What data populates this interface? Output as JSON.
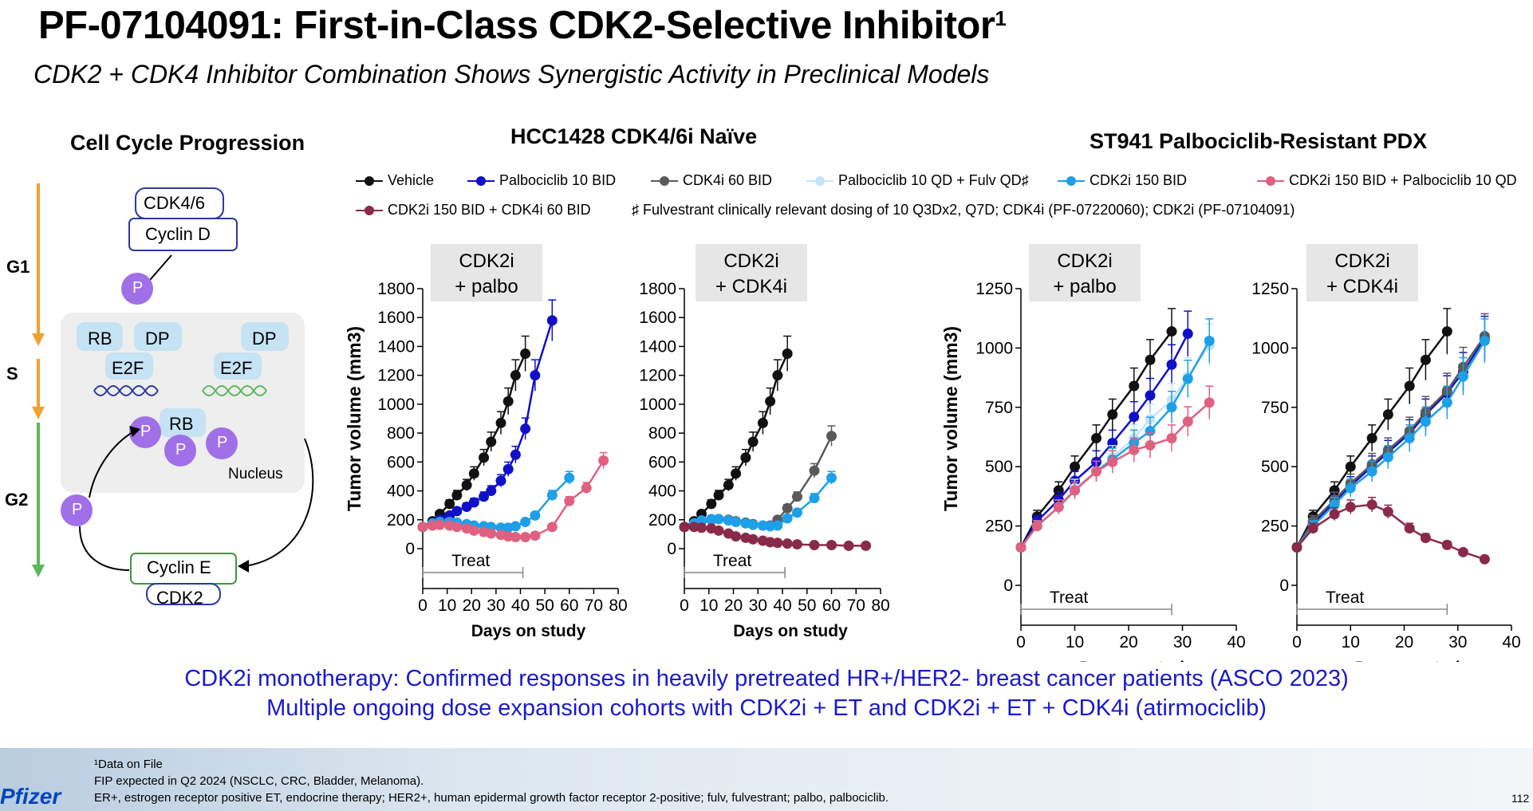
{
  "title": "PF-07104091: First-in-Class CDK2-Selective Inhibitor",
  "title_sup": "1",
  "subtitle": "CDK2 + CDK4 Inhibitor Combination Shows Synergistic Activity in Preclinical Models",
  "cell_cycle": {
    "heading": "Cell Cycle Progression",
    "phases": [
      "G1",
      "S",
      "G2"
    ],
    "cdk46": "CDK4/6",
    "cyclin_d": "Cyclin D",
    "cyclin_e": "Cyclin E",
    "cdk2": "CDK2",
    "rb": "RB",
    "dp": "DP",
    "e2f": "E2F",
    "p": "P",
    "nucleus": "Nucleus",
    "colors": {
      "phase_g1": "#f0a030",
      "phase_g2": "#5cb85c",
      "phospho": "#a070e8",
      "box_fill": "#eeeeee",
      "rb_fill": "#c6e2f5"
    }
  },
  "heading_hcc": "HCC1428 CDK4/6i Naïve",
  "heading_st941": "ST941 Palbociclib-Resistant PDX",
  "legend": {
    "items": [
      {
        "label": "Vehicle",
        "color": "#111111"
      },
      {
        "label": "Palbociclib 10 BID",
        "color": "#1010c8"
      },
      {
        "label": "CDK4i 60 BID",
        "color": "#5a5a5a"
      },
      {
        "label": "Palbociclib 10 QD + Fulv QD♯",
        "color": "#c5e4f8"
      },
      {
        "label": "CDK2i 150 BID",
        "color": "#1ea0e8"
      },
      {
        "label": "CDK2i 150 BID + Palbociclib 10 QD",
        "color": "#e06080"
      },
      {
        "label": "CDK2i 150 BID + CDK4i 60 BID",
        "color": "#8a2a4a"
      }
    ],
    "footnote": "♯ Fulvestrant clinically relevant dosing of 10 Q3Dx2, Q7D; CDK4i (PF-07220060); CDK2i (PF-07104091)"
  },
  "chart_data": [
    {
      "type": "line",
      "panel": "HCC1428 CDK4/6i Naïve",
      "box_label": [
        "CDK2i",
        "+ palbo"
      ],
      "xlabel": "Days on study",
      "ylabel": "Tumor volume (mm3)",
      "xlim": [
        0,
        80
      ],
      "ylim": [
        0,
        1800
      ],
      "xticks": [
        0,
        10,
        20,
        30,
        40,
        50,
        60,
        70,
        80
      ],
      "yticks": [
        0,
        200,
        400,
        600,
        800,
        1000,
        1200,
        1400,
        1600,
        1800
      ],
      "treat_label": "Treat",
      "treat_range": [
        0,
        41
      ],
      "series": [
        {
          "name": "Vehicle",
          "color": "#111111",
          "x": [
            0,
            4,
            7,
            11,
            14,
            18,
            21,
            25,
            28,
            32,
            35,
            38,
            42
          ],
          "y": [
            150,
            190,
            240,
            310,
            370,
            440,
            520,
            630,
            740,
            870,
            1020,
            1200,
            1350
          ]
        },
        {
          "name": "Palbociclib 10 BID",
          "color": "#1010c8",
          "x": [
            0,
            4,
            7,
            11,
            14,
            18,
            21,
            25,
            28,
            32,
            35,
            38,
            42,
            46,
            53
          ],
          "y": [
            150,
            170,
            200,
            230,
            260,
            290,
            320,
            360,
            400,
            470,
            550,
            650,
            830,
            1200,
            1580
          ]
        },
        {
          "name": "CDK2i 150 BID",
          "color": "#1ea0e8",
          "x": [
            0,
            4,
            7,
            11,
            14,
            18,
            21,
            25,
            28,
            32,
            35,
            38,
            42,
            46,
            53,
            60
          ],
          "y": [
            150,
            175,
            185,
            185,
            180,
            170,
            160,
            155,
            150,
            145,
            145,
            155,
            185,
            230,
            370,
            490
          ]
        },
        {
          "name": "CDK2i 150 BID + Palbociclib 10 QD",
          "color": "#e06080",
          "x": [
            0,
            4,
            7,
            11,
            14,
            18,
            21,
            25,
            28,
            32,
            35,
            38,
            42,
            46,
            53,
            60,
            67,
            74
          ],
          "y": [
            150,
            160,
            165,
            160,
            150,
            140,
            125,
            115,
            105,
            95,
            85,
            80,
            80,
            90,
            150,
            330,
            420,
            610
          ]
        }
      ]
    },
    {
      "type": "line",
      "panel": "HCC1428 CDK4/6i Naïve",
      "box_label": [
        "CDK2i",
        "+ CDK4i"
      ],
      "xlabel": "Days on study",
      "xlim": [
        0,
        80
      ],
      "ylim": [
        0,
        1800
      ],
      "xticks": [
        0,
        10,
        20,
        30,
        40,
        50,
        60,
        70,
        80
      ],
      "yticks": [
        0,
        200,
        400,
        600,
        800,
        1000,
        1200,
        1400,
        1600,
        1800
      ],
      "treat_label": "Treat",
      "treat_range": [
        0,
        41
      ],
      "series": [
        {
          "name": "Vehicle",
          "color": "#111111",
          "x": [
            0,
            4,
            7,
            11,
            14,
            18,
            21,
            25,
            28,
            32,
            35,
            38,
            42
          ],
          "y": [
            150,
            190,
            240,
            310,
            370,
            440,
            520,
            630,
            740,
            870,
            1020,
            1200,
            1350
          ]
        },
        {
          "name": "CDK4i 60 BID",
          "color": "#5a5a5a",
          "x": [
            0,
            4,
            7,
            11,
            14,
            18,
            21,
            25,
            28,
            32,
            35,
            38,
            42,
            46,
            53,
            60
          ],
          "y": [
            150,
            170,
            190,
            200,
            205,
            200,
            190,
            180,
            170,
            160,
            160,
            200,
            280,
            360,
            540,
            780
          ]
        },
        {
          "name": "CDK2i 150 BID",
          "color": "#1ea0e8",
          "x": [
            0,
            4,
            7,
            11,
            14,
            18,
            21,
            25,
            28,
            32,
            35,
            38,
            42,
            46,
            53,
            60
          ],
          "y": [
            150,
            175,
            195,
            205,
            205,
            195,
            185,
            175,
            165,
            160,
            155,
            160,
            210,
            250,
            350,
            490
          ]
        },
        {
          "name": "CDK2i 150 BID + CDK4i 60 BID",
          "color": "#8a2a4a",
          "x": [
            0,
            4,
            7,
            11,
            14,
            18,
            21,
            25,
            28,
            32,
            35,
            38,
            42,
            46,
            53,
            60,
            67,
            74
          ],
          "y": [
            150,
            150,
            145,
            140,
            125,
            105,
            85,
            75,
            65,
            55,
            45,
            40,
            35,
            30,
            25,
            25,
            20,
            20
          ]
        }
      ]
    },
    {
      "type": "line",
      "panel": "ST941 Palbociclib-Resistant PDX",
      "box_label": [
        "CDK2i",
        "+ palbo"
      ],
      "xlabel": "Days on study",
      "ylabel": "Tumor volume (mm3)",
      "xlim": [
        0,
        40
      ],
      "ylim": [
        0,
        1250
      ],
      "xticks": [
        0,
        10,
        20,
        30,
        40
      ],
      "yticks": [
        0,
        250,
        500,
        750,
        1000,
        1250
      ],
      "treat_label": "Treat",
      "treat_range": [
        0,
        28
      ],
      "series": [
        {
          "name": "Vehicle",
          "color": "#111111",
          "x": [
            0,
            3,
            7,
            10,
            14,
            17,
            21,
            24,
            28
          ],
          "y": [
            160,
            290,
            400,
            500,
            620,
            720,
            840,
            950,
            1070
          ]
        },
        {
          "name": "Palbociclib 10 BID",
          "color": "#1010c8",
          "x": [
            0,
            3,
            7,
            10,
            14,
            17,
            21,
            24,
            28,
            31
          ],
          "y": [
            160,
            270,
            360,
            440,
            520,
            600,
            710,
            800,
            930,
            1060
          ]
        },
        {
          "name": "Palbociclib 10 QD + Fulv QD♯",
          "color": "#c5e4f8",
          "x": [
            0,
            3,
            7,
            10,
            14,
            17,
            21,
            24,
            28,
            31,
            35
          ],
          "y": [
            160,
            250,
            330,
            410,
            480,
            540,
            620,
            700,
            780,
            880,
            1010
          ]
        },
        {
          "name": "CDK2i 150 BID",
          "color": "#1ea0e8",
          "x": [
            0,
            3,
            7,
            10,
            14,
            17,
            21,
            24,
            28,
            31,
            35
          ],
          "y": [
            160,
            250,
            330,
            400,
            480,
            530,
            600,
            650,
            750,
            870,
            1030
          ]
        },
        {
          "name": "CDK2i 150 BID + Palbociclib 10 QD",
          "color": "#e06080",
          "x": [
            0,
            3,
            7,
            10,
            14,
            17,
            21,
            24,
            28,
            31,
            35
          ],
          "y": [
            160,
            250,
            330,
            400,
            480,
            520,
            570,
            590,
            620,
            690,
            770
          ]
        }
      ]
    },
    {
      "type": "line",
      "panel": "ST941 Palbociclib-Resistant PDX",
      "box_label": [
        "CDK2i",
        "+ CDK4i"
      ],
      "xlabel": "Days on study",
      "xlim": [
        0,
        40
      ],
      "ylim": [
        0,
        1250
      ],
      "xticks": [
        0,
        10,
        20,
        30,
        40
      ],
      "yticks": [
        0,
        250,
        500,
        750,
        1000,
        1250
      ],
      "treat_label": "Treat",
      "treat_range": [
        0,
        28
      ],
      "series": [
        {
          "name": "Vehicle",
          "color": "#111111",
          "x": [
            0,
            3,
            7,
            10,
            14,
            17,
            21,
            24,
            28
          ],
          "y": [
            160,
            290,
            400,
            500,
            620,
            720,
            840,
            950,
            1070
          ]
        },
        {
          "name": "Palbociclib 10 BID",
          "color": "#1010c8",
          "x": [
            0,
            3,
            7,
            10,
            14,
            17,
            21,
            24,
            28,
            31,
            35
          ],
          "y": [
            160,
            260,
            350,
            420,
            500,
            560,
            640,
            720,
            810,
            900,
            1040
          ]
        },
        {
          "name": "CDK4i 60 BID",
          "color": "#5a5a5a",
          "x": [
            0,
            3,
            7,
            10,
            14,
            17,
            21,
            24,
            28,
            31,
            35
          ],
          "y": [
            160,
            270,
            360,
            430,
            510,
            570,
            650,
            730,
            820,
            920,
            1050
          ]
        },
        {
          "name": "CDK2i 150 BID",
          "color": "#1ea0e8",
          "x": [
            0,
            3,
            7,
            10,
            14,
            17,
            21,
            24,
            28,
            31,
            35
          ],
          "y": [
            160,
            250,
            340,
            410,
            480,
            540,
            620,
            690,
            770,
            880,
            1030
          ]
        },
        {
          "name": "CDK2i 150 BID + CDK4i 60 BID",
          "color": "#8a2a4a",
          "x": [
            0,
            3,
            7,
            10,
            14,
            17,
            21,
            24,
            28,
            31,
            35
          ],
          "y": [
            160,
            240,
            300,
            330,
            340,
            310,
            240,
            200,
            170,
            140,
            110
          ]
        }
      ]
    }
  ],
  "bottom_text": [
    "CDK2i monotherapy: Confirmed responses in heavily pretreated HR+/HER2- breast cancer patients (ASCO 2023)",
    "Multiple ongoing dose expansion cohorts with CDK2i + ET and CDK2i + ET + CDK4i (atirmociclib)"
  ],
  "footnotes": [
    "¹Data on File",
    "FIP expected in Q2 2024 (NSCLC, CRC, Bladder, Melanoma).",
    "ER+, estrogen receptor positive ET, endocrine therapy; HER2+, human epidermal growth factor receptor 2-positive; fulv, fulvestrant; palbo, palbociclib."
  ],
  "logo_text": "Pfizer",
  "page_number": "112"
}
